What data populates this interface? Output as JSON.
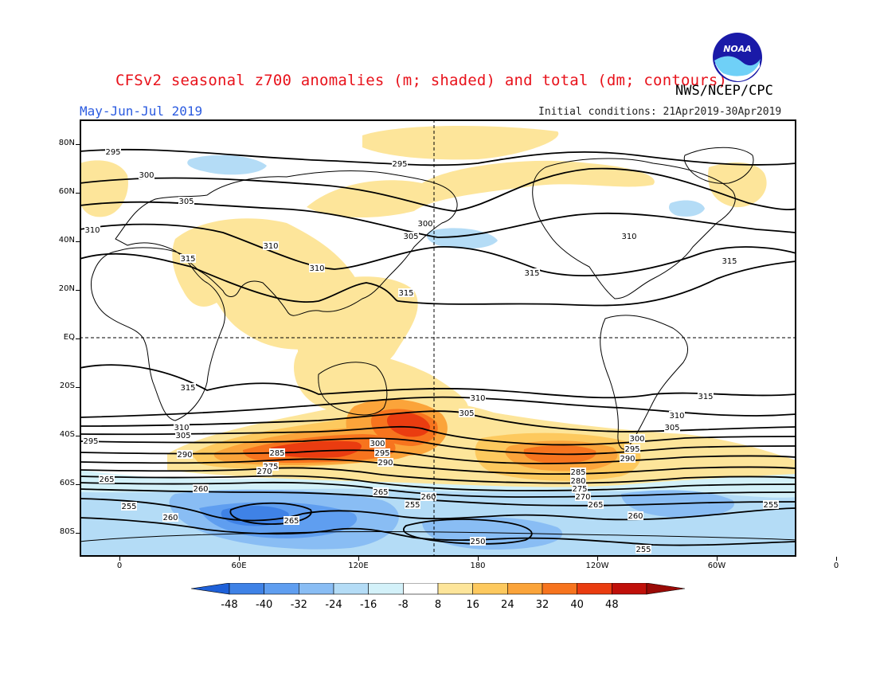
{
  "header": {
    "title": "CFSv2 seasonal z700 anomalies (m; shaded) and total (dm; contours)",
    "agency": "NWS/NCEP/CPC",
    "period": "May-Jun-Jul 2019",
    "initial_conditions": "Initial conditions: 21Apr2019-30Apr2019",
    "logo_text": "NOAA"
  },
  "map": {
    "projection": "cylindrical equidistant",
    "lon_range": [
      -20,
      340
    ],
    "lat_range": [
      -90,
      90
    ],
    "lat_labels": [
      "80N",
      "60N",
      "40N",
      "20N",
      "EQ",
      "20S",
      "40S",
      "60S",
      "80S"
    ],
    "lon_labels": [
      "0",
      "60E",
      "120E",
      "180",
      "120W",
      "60W",
      "0"
    ],
    "reference_lines": [
      "EQ",
      "180"
    ],
    "coastlines": "continental outlines drawn in black"
  },
  "anomaly_shading": {
    "units": "m",
    "colorbar_labels": [
      "-48",
      "-40",
      "-32",
      "-24",
      "-16",
      "-8",
      "8",
      "16",
      "24",
      "32",
      "40",
      "48"
    ],
    "colors": [
      "#1e60d8",
      "#3f82e6",
      "#5f9ef0",
      "#89bdf4",
      "#b4dcf6",
      "#d3f1f9",
      "#ffffff",
      "#fde59a",
      "#fdc95e",
      "#fba43a",
      "#f7741e",
      "#ea3c10",
      "#c0100a",
      "#9a0a06"
    ],
    "features": [
      {
        "region": "South Pacific near New Zealand",
        "anomaly": "+40 to +48"
      },
      {
        "region": "South Indian Ocean / south of Australia",
        "anomaly": "+24 to +40"
      },
      {
        "region": "Southeast Pacific near South America",
        "anomaly": "+24 to +40"
      },
      {
        "region": "Western Pacific and Maritime Continent",
        "anomaly": "+8 to +16"
      },
      {
        "region": "Middle East and South Asia",
        "anomaly": "+8 to +16"
      },
      {
        "region": "Arctic and North Pacific",
        "anomaly": "+8 to +16"
      },
      {
        "region": "Antarctic / Southern Ocean",
        "anomaly": "-8 to -32"
      }
    ]
  },
  "total_contours": {
    "units": "dm",
    "labels": [
      "295",
      "300",
      "305",
      "310",
      "315",
      "260",
      "265",
      "270",
      "275",
      "280",
      "285",
      "290",
      "250",
      "255"
    ]
  }
}
